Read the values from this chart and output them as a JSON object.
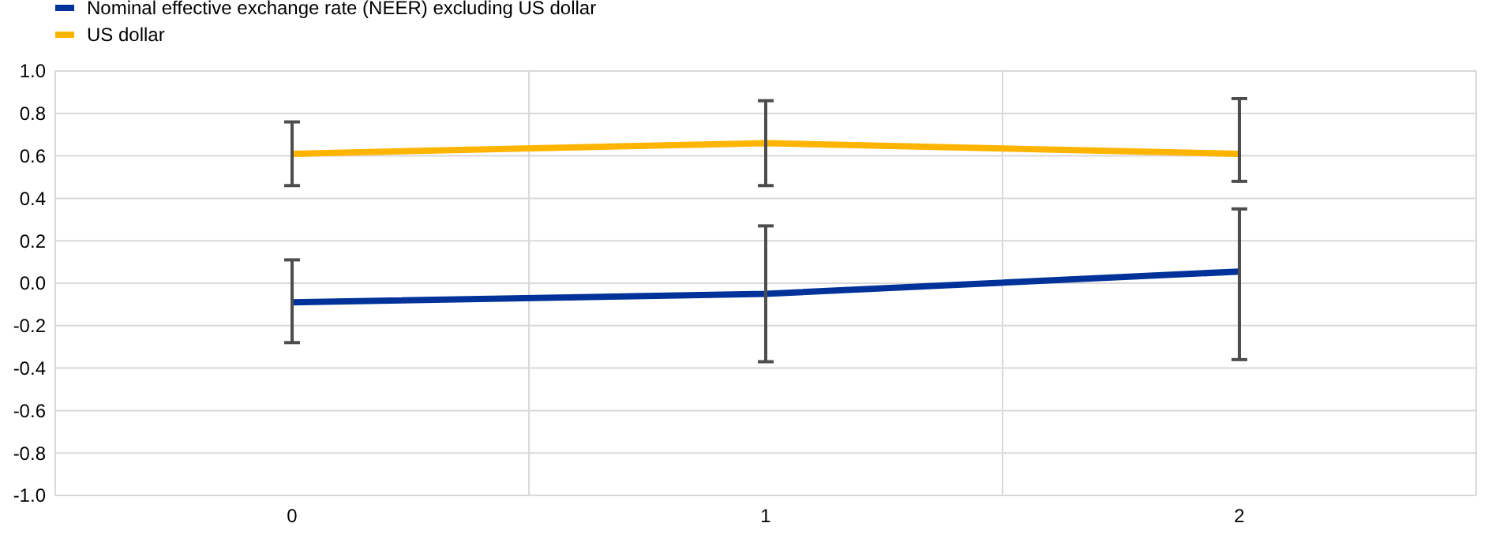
{
  "chart_data": {
    "type": "line",
    "categories": [
      "0",
      "1",
      "2"
    ],
    "ylim": [
      -1,
      1
    ],
    "yticks": [
      {
        "value": -1,
        "label": "-1.0"
      },
      {
        "value": -0.8,
        "label": "-0.8"
      },
      {
        "value": -0.6,
        "label": "-0.6"
      },
      {
        "value": -0.4,
        "label": "-0.4"
      },
      {
        "value": -0.2,
        "label": "-0.2"
      },
      {
        "value": 0,
        "label": "0.0"
      },
      {
        "value": 0.2,
        "label": "0.2"
      },
      {
        "value": 0.4,
        "label": "0.4"
      },
      {
        "value": 0.6,
        "label": "0.6"
      },
      {
        "value": 0.8,
        "label": "0.8"
      },
      {
        "value": 1,
        "label": "1.0"
      }
    ],
    "grid": true,
    "legend": "top left",
    "marker": "none",
    "series": [
      {
        "name": "Nominal effective exchange rate (NEER) excluding US dollar",
        "color": "#003299",
        "values": [
          -0.09,
          -0.05,
          0.055
        ],
        "errors": [
          [
            -0.28,
            0.11
          ],
          [
            -0.37,
            0.27
          ],
          [
            -0.36,
            0.35
          ]
        ]
      },
      {
        "name": "US dollar",
        "color": "#ffb400",
        "values": [
          0.61,
          0.66,
          0.61
        ],
        "errors": [
          [
            0.46,
            0.76
          ],
          [
            0.46,
            0.86
          ],
          [
            0.48,
            0.87
          ]
        ]
      }
    ]
  }
}
